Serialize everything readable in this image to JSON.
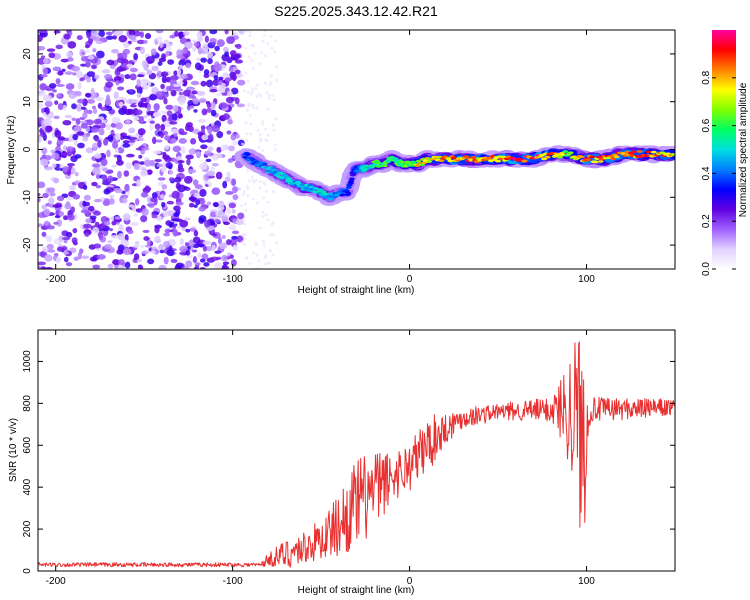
{
  "title": "S225.2025.343.12.42.R21",
  "chart_data": [
    {
      "type": "heatmap",
      "name": "spectrogram",
      "xlabel": "Height of straight line (km)",
      "ylabel": "Frequency (Hz)",
      "xlim": [
        -210,
        150
      ],
      "ylim": [
        -25,
        25
      ],
      "xticks": [
        -200,
        -100,
        0,
        100
      ],
      "yticks": [
        -20,
        -10,
        0,
        10,
        20
      ],
      "colorbar": {
        "label": "Normalized spectral amplitude",
        "range": [
          0,
          1
        ],
        "ticks": [
          "0.0",
          "0.2",
          "0.4",
          "0.6",
          "0.8"
        ],
        "colormap": [
          "#ffffff",
          "#e0d0ff",
          "#a060ff",
          "#6000e0",
          "#0000ff",
          "#0080ff",
          "#00e0e0",
          "#00ff60",
          "#80ff00",
          "#ffff00",
          "#ff8000",
          "#ff0000",
          "#ff00a0"
        ]
      },
      "noise_region": {
        "x": [
          -210,
          -95
        ],
        "amplitude": [
          0.05,
          0.3
        ]
      },
      "ridge": [
        {
          "x": -93,
          "y": -1,
          "a": 0.35
        },
        {
          "x": -90,
          "y": -2,
          "a": 0.4
        },
        {
          "x": -85,
          "y": -3,
          "a": 0.4
        },
        {
          "x": -80,
          "y": -4,
          "a": 0.45
        },
        {
          "x": -75,
          "y": -5,
          "a": 0.45
        },
        {
          "x": -70,
          "y": -6,
          "a": 0.5
        },
        {
          "x": -65,
          "y": -7,
          "a": 0.45
        },
        {
          "x": -60,
          "y": -8,
          "a": 0.5
        },
        {
          "x": -55,
          "y": -8,
          "a": 0.45
        },
        {
          "x": -50,
          "y": -9,
          "a": 0.5
        },
        {
          "x": -45,
          "y": -10,
          "a": 0.45
        },
        {
          "x": -40,
          "y": -9,
          "a": 0.4
        },
        {
          "x": -35,
          "y": -9,
          "a": 0.35
        },
        {
          "x": -32,
          "y": -5,
          "a": 0.3
        },
        {
          "x": -30,
          "y": -4,
          "a": 0.4
        },
        {
          "x": -25,
          "y": -4,
          "a": 0.5
        },
        {
          "x": -20,
          "y": -3,
          "a": 0.55
        },
        {
          "x": -15,
          "y": -3,
          "a": 0.6
        },
        {
          "x": -10,
          "y": -2,
          "a": 0.55
        },
        {
          "x": -5,
          "y": -3,
          "a": 0.6
        },
        {
          "x": 0,
          "y": -3,
          "a": 0.6
        },
        {
          "x": 5,
          "y": -3,
          "a": 0.75
        },
        {
          "x": 10,
          "y": -2,
          "a": 0.7
        },
        {
          "x": 20,
          "y": -2,
          "a": 0.8
        },
        {
          "x": 30,
          "y": -2,
          "a": 0.85
        },
        {
          "x": 40,
          "y": -2,
          "a": 0.8
        },
        {
          "x": 50,
          "y": -2,
          "a": 0.8
        },
        {
          "x": 60,
          "y": -2,
          "a": 0.9
        },
        {
          "x": 70,
          "y": -2,
          "a": 0.9
        },
        {
          "x": 80,
          "y": -1,
          "a": 0.85
        },
        {
          "x": 90,
          "y": -1,
          "a": 0.6
        },
        {
          "x": 100,
          "y": -2,
          "a": 0.85
        },
        {
          "x": 110,
          "y": -2,
          "a": 0.8
        },
        {
          "x": 120,
          "y": -1,
          "a": 0.85
        },
        {
          "x": 130,
          "y": -1,
          "a": 0.85
        },
        {
          "x": 140,
          "y": -1,
          "a": 0.8
        },
        {
          "x": 150,
          "y": -1,
          "a": 0.8
        }
      ]
    },
    {
      "type": "line",
      "name": "snr",
      "xlabel": "Height of straight line (km)",
      "ylabel": "SNR (10 * v/v)",
      "xlim": [
        -210,
        150
      ],
      "ylim": [
        0,
        1150
      ],
      "xticks": [
        -200,
        -100,
        0,
        100
      ],
      "yticks": [
        0,
        200,
        400,
        600,
        800,
        1000
      ],
      "color": "#e83030",
      "envelope": [
        {
          "x": -210,
          "mean": 30,
          "spread": 10
        },
        {
          "x": -85,
          "mean": 30,
          "spread": 10
        },
        {
          "x": -78,
          "mean": 60,
          "spread": 40
        },
        {
          "x": -70,
          "mean": 80,
          "spread": 70
        },
        {
          "x": -60,
          "mean": 110,
          "spread": 80
        },
        {
          "x": -50,
          "mean": 150,
          "spread": 100
        },
        {
          "x": -40,
          "mean": 220,
          "spread": 150
        },
        {
          "x": -30,
          "mean": 320,
          "spread": 220
        },
        {
          "x": -20,
          "mean": 380,
          "spread": 200
        },
        {
          "x": -10,
          "mean": 450,
          "spread": 120
        },
        {
          "x": 0,
          "mean": 500,
          "spread": 120
        },
        {
          "x": 10,
          "mean": 600,
          "spread": 140
        },
        {
          "x": 20,
          "mean": 680,
          "spread": 80
        },
        {
          "x": 30,
          "mean": 730,
          "spread": 50
        },
        {
          "x": 50,
          "mean": 760,
          "spread": 40
        },
        {
          "x": 80,
          "mean": 770,
          "spread": 60
        },
        {
          "x": 88,
          "mean": 780,
          "spread": 200
        },
        {
          "x": 94,
          "mean": 760,
          "spread": 400
        },
        {
          "x": 98,
          "mean": 600,
          "spread": 550
        },
        {
          "x": 102,
          "mean": 770,
          "spread": 60
        },
        {
          "x": 150,
          "mean": 780,
          "spread": 40
        }
      ]
    }
  ]
}
